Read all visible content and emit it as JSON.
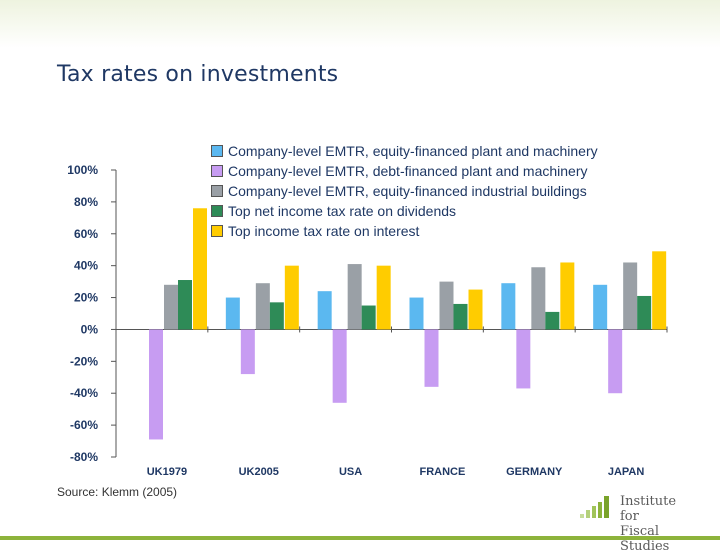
{
  "slide": {
    "title": "Tax rates on investments",
    "source": "Source: Klemm (2005)",
    "logo": {
      "line1": "Institute for",
      "line2": "Fiscal Studies"
    }
  },
  "chart_data": {
    "type": "bar",
    "categories": [
      "UK1979",
      "UK2005",
      "USA",
      "FRANCE",
      "GERMANY",
      "JAPAN"
    ],
    "series": [
      {
        "name": "Company-level EMTR, equity-financed plant and machinery",
        "color": "#5bb8f0",
        "values": [
          0,
          20,
          24,
          20,
          29,
          28
        ]
      },
      {
        "name": "Company-level EMTR, debt-financed plant and machinery",
        "color": "#c79cf2",
        "values": [
          -69,
          -28,
          -46,
          -36,
          -37,
          -40
        ]
      },
      {
        "name": "Company-level EMTR, equity-financed industrial buildings",
        "color": "#9aa0a6",
        "values": [
          28,
          29,
          41,
          30,
          39,
          42
        ]
      },
      {
        "name": "Top net income tax rate on dividends",
        "color": "#2e8b57",
        "values": [
          31,
          17,
          15,
          16,
          11,
          21
        ]
      },
      {
        "name": "Top income tax rate on interest",
        "color": "#ffcc00",
        "values": [
          76,
          40,
          40,
          25,
          42,
          49
        ]
      }
    ],
    "y_ticks": [
      "100%",
      "80%",
      "60%",
      "40%",
      "20%",
      "0%",
      "-20%",
      "-40%",
      "-60%",
      "-80%"
    ],
    "ylim": [
      -80,
      100
    ],
    "grid": false,
    "legend_position": "top-right"
  }
}
